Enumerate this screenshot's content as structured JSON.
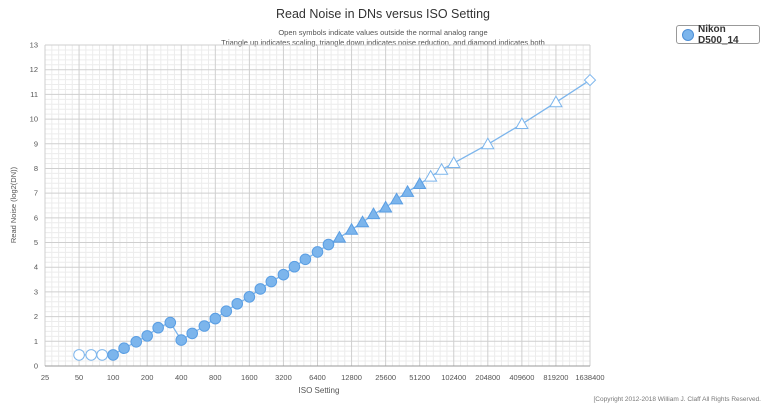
{
  "chart_data": {
    "type": "scatter",
    "title": "Read Noise in DNs versus ISO Setting",
    "subtitle_lines": [
      "Open symbols indicate values outside the normal analog range",
      "Triangle up indicates scaling, triangle down indicates noise reduction, and diamond indicates both"
    ],
    "xlabel": "ISO Setting",
    "ylabel": "Read Noise (log2(DN))",
    "x_scale": "log2",
    "xlim": [
      25,
      1638400
    ],
    "ylim": [
      0,
      13
    ],
    "x_ticks": [
      "25",
      "50",
      "100",
      "200",
      "400",
      "800",
      "1600",
      "3200",
      "6400",
      "12800",
      "25600",
      "51200",
      "102400",
      "204800",
      "409600",
      "819200",
      "1638400"
    ],
    "y_ticks": [
      "0",
      "1",
      "2",
      "3",
      "4",
      "5",
      "6",
      "7",
      "8",
      "9",
      "10",
      "11",
      "12",
      "13"
    ],
    "grid": true,
    "legend_position": "top-right",
    "series": [
      {
        "name": "Nikon D500_14",
        "color": "#7cb5ec",
        "points": [
          {
            "x": 50,
            "y": 0.45,
            "marker": "circle-open"
          },
          {
            "x": 64,
            "y": 0.45,
            "marker": "circle-open"
          },
          {
            "x": 80,
            "y": 0.45,
            "marker": "circle-open"
          },
          {
            "x": 100,
            "y": 0.45,
            "marker": "circle"
          },
          {
            "x": 125,
            "y": 0.72,
            "marker": "circle"
          },
          {
            "x": 160,
            "y": 0.98,
            "marker": "circle"
          },
          {
            "x": 200,
            "y": 1.22,
            "marker": "circle"
          },
          {
            "x": 250,
            "y": 1.55,
            "marker": "circle"
          },
          {
            "x": 320,
            "y": 1.76,
            "marker": "circle"
          },
          {
            "x": 400,
            "y": 1.05,
            "marker": "circle"
          },
          {
            "x": 500,
            "y": 1.32,
            "marker": "circle"
          },
          {
            "x": 640,
            "y": 1.62,
            "marker": "circle"
          },
          {
            "x": 800,
            "y": 1.92,
            "marker": "circle"
          },
          {
            "x": 1000,
            "y": 2.22,
            "marker": "circle"
          },
          {
            "x": 1250,
            "y": 2.52,
            "marker": "circle"
          },
          {
            "x": 1600,
            "y": 2.8,
            "marker": "circle"
          },
          {
            "x": 2000,
            "y": 3.12,
            "marker": "circle"
          },
          {
            "x": 2500,
            "y": 3.42,
            "marker": "circle"
          },
          {
            "x": 3200,
            "y": 3.7,
            "marker": "circle"
          },
          {
            "x": 4000,
            "y": 4.02,
            "marker": "circle"
          },
          {
            "x": 5000,
            "y": 4.32,
            "marker": "circle"
          },
          {
            "x": 6400,
            "y": 4.62,
            "marker": "circle"
          },
          {
            "x": 8000,
            "y": 4.92,
            "marker": "circle"
          },
          {
            "x": 10000,
            "y": 5.2,
            "marker": "triangle-up"
          },
          {
            "x": 12800,
            "y": 5.52,
            "marker": "triangle-up"
          },
          {
            "x": 16000,
            "y": 5.82,
            "marker": "triangle-up"
          },
          {
            "x": 20000,
            "y": 6.15,
            "marker": "triangle-up"
          },
          {
            "x": 25600,
            "y": 6.42,
            "marker": "triangle-up"
          },
          {
            "x": 32000,
            "y": 6.75,
            "marker": "triangle-up"
          },
          {
            "x": 40000,
            "y": 7.05,
            "marker": "triangle-up"
          },
          {
            "x": 51200,
            "y": 7.37,
            "marker": "triangle-up"
          },
          {
            "x": 64000,
            "y": 7.67,
            "marker": "triangle-up-open"
          },
          {
            "x": 80000,
            "y": 7.95,
            "marker": "triangle-up-open"
          },
          {
            "x": 102400,
            "y": 8.22,
            "marker": "triangle-up-open"
          },
          {
            "x": 204800,
            "y": 8.98,
            "marker": "triangle-up-open"
          },
          {
            "x": 409600,
            "y": 9.8,
            "marker": "triangle-up-open"
          },
          {
            "x": 819200,
            "y": 10.68,
            "marker": "triangle-up-open"
          },
          {
            "x": 1638400,
            "y": 11.58,
            "marker": "diamond-open"
          }
        ]
      }
    ]
  },
  "copyright": "[Copyright 2012-2018 William J. Claff All Rights Reserved."
}
